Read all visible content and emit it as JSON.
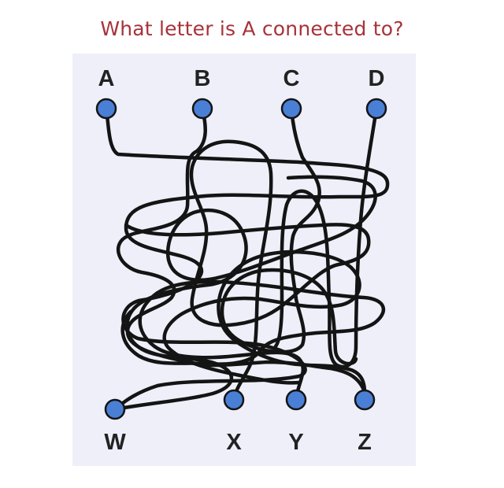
{
  "puzzle": {
    "question": "What letter is A connected to?",
    "top_labels": [
      "A",
      "B",
      "C",
      "D"
    ],
    "bottom_labels": [
      "W",
      "X",
      "Y",
      "Z"
    ],
    "node_color": "#4a7fd6",
    "line_color": "#141414",
    "question_color": "#a8323a"
  }
}
